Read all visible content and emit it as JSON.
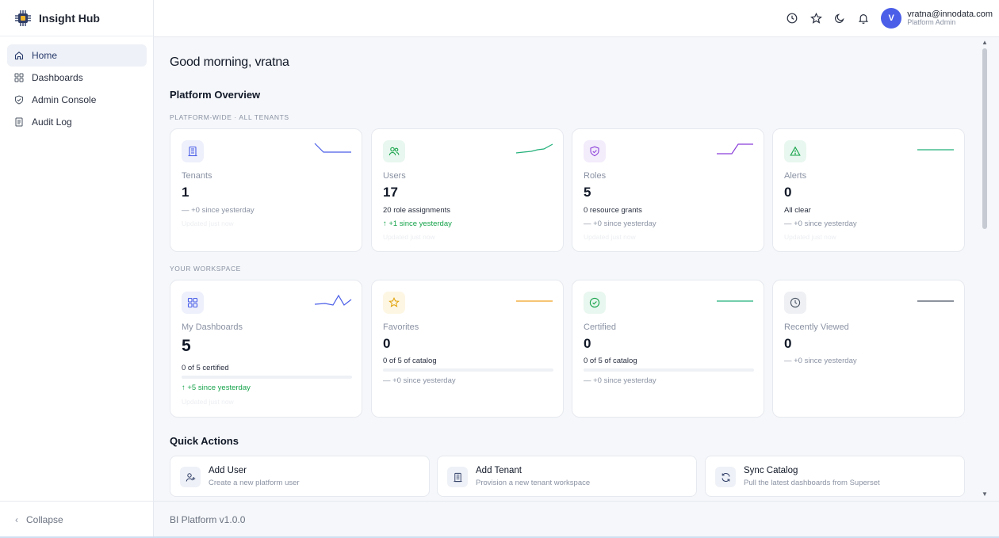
{
  "app": {
    "name": "Insight Hub"
  },
  "sidebar": {
    "items": [
      {
        "label": "Home",
        "icon": "home-icon"
      },
      {
        "label": "Dashboards",
        "icon": "grid-icon"
      },
      {
        "label": "Admin Console",
        "icon": "shield-icon"
      },
      {
        "label": "Audit Log",
        "icon": "log-icon"
      }
    ],
    "active": "Home",
    "collapse_label": "Collapse"
  },
  "header": {
    "icons": [
      "clock-icon",
      "star-icon",
      "moon-icon",
      "bell-icon"
    ],
    "user": {
      "initial": "V",
      "email": "vratna@innodata.com",
      "role": "Platform Admin"
    },
    "accent": "#4a5ee8"
  },
  "main": {
    "greeting": "Good morning, vratna",
    "overview_title": "Platform Overview",
    "platform_label": "PLATFORM-WIDE · ALL TENANTS",
    "workspace_label": "YOUR WORKSPACE",
    "platform_cards": [
      {
        "label": "Tenants",
        "value": "1",
        "sub": "",
        "delta": "— +0 since yesterday",
        "delta_up": false,
        "updated": "Updated just now",
        "icon": "building-icon",
        "icon_bg": "#eef0fb",
        "icon_color": "#4a5ee8",
        "spark_color": "#4a5ee8"
      },
      {
        "label": "Users",
        "value": "17",
        "sub": "20 role assignments",
        "delta": "↑ +1 since yesterday",
        "delta_up": true,
        "updated": "Updated just now",
        "icon": "users-icon",
        "icon_bg": "#e8f7ef",
        "icon_color": "#16a34a",
        "spark_color": "#22b07a"
      },
      {
        "label": "Roles",
        "value": "5",
        "sub": "0 resource grants",
        "delta": "— +0 since yesterday",
        "delta_up": false,
        "updated": "Updated just now",
        "icon": "shield-check-icon",
        "icon_bg": "#f3ecfb",
        "icon_color": "#8b3fd9",
        "spark_color": "#8b3fd9"
      },
      {
        "label": "Alerts",
        "value": "0",
        "sub": "All clear",
        "delta": "— +0 since yesterday",
        "delta_up": false,
        "updated": "Updated just now",
        "icon": "alert-triangle-icon",
        "icon_bg": "#e8f7ef",
        "icon_color": "#16a34a",
        "spark_color": "#22b07a"
      }
    ],
    "workspace_cards": [
      {
        "label": "My Dashboards",
        "value": "5",
        "sub": "0 of 5 certified",
        "delta": "↑ +5 since yesterday",
        "delta_up": true,
        "updated": "Updated just now",
        "progress": 0,
        "icon": "grid-icon",
        "icon_bg": "#eef0fb",
        "icon_color": "#4a5ee8",
        "spark_color": "#4a5ee8"
      },
      {
        "label": "Favorites",
        "value": "0",
        "sub": "0 of 5 of catalog",
        "delta": "— +0 since yesterday",
        "delta_up": false,
        "progress": 0,
        "icon": "star-icon",
        "icon_bg": "#fdf6e3",
        "icon_color": "#e0a106",
        "spark_color": "#f0a020"
      },
      {
        "label": "Certified",
        "value": "0",
        "sub": "0 of 5 of catalog",
        "delta": "— +0 since yesterday",
        "delta_up": false,
        "progress": 0,
        "icon": "check-circle-icon",
        "icon_bg": "#e8f7ef",
        "icon_color": "#16a34a",
        "spark_color": "#22b07a"
      },
      {
        "label": "Recently Viewed",
        "value": "0",
        "sub": "",
        "delta": "— +0 since yesterday",
        "delta_up": false,
        "icon": "clock-icon",
        "icon_bg": "#eef0f4",
        "icon_color": "#4b5563",
        "spark_color": "#4b5563"
      }
    ],
    "quick_actions_title": "Quick Actions",
    "quick_actions": [
      {
        "title": "Add User",
        "desc": "Create a new platform user",
        "icon": "user-plus-icon"
      },
      {
        "title": "Add Tenant",
        "desc": "Provision a new tenant workspace",
        "icon": "building-icon"
      },
      {
        "title": "Sync Catalog",
        "desc": "Pull the latest dashboards from Superset",
        "icon": "refresh-icon"
      }
    ]
  },
  "footer": {
    "version": "BI Platform v1.0.0"
  }
}
